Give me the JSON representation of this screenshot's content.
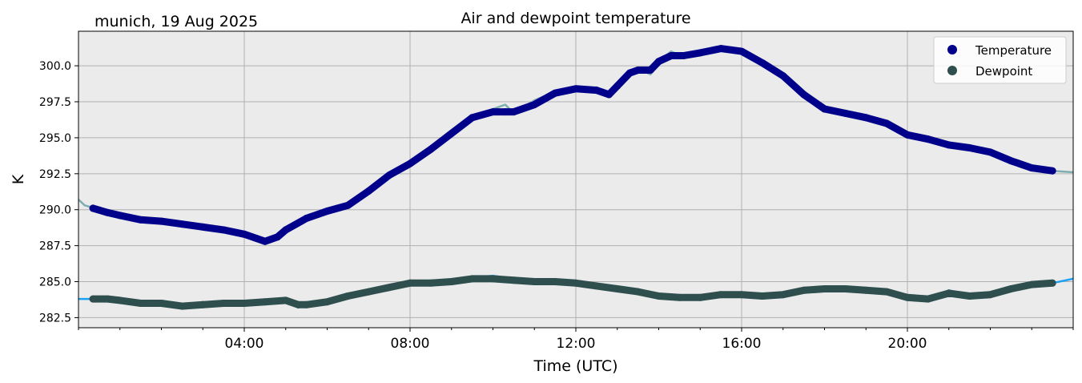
{
  "chart_data": {
    "type": "line",
    "title": "Air and dewpoint temperature",
    "subtitle": "munich, 19 Aug 2025",
    "xlabel": "Time (UTC)",
    "ylabel": "K",
    "xlim": [
      0,
      24
    ],
    "ylim": [
      281.8,
      302.4
    ],
    "grid": true,
    "background": "#ebebeb",
    "x_ticks": [
      {
        "value": 4,
        "label": "04:00"
      },
      {
        "value": 8,
        "label": "08:00"
      },
      {
        "value": 12,
        "label": "12:00"
      },
      {
        "value": 16,
        "label": "16:00"
      },
      {
        "value": 20,
        "label": "20:00"
      }
    ],
    "y_ticks": [
      {
        "value": 282.5,
        "label": "282.5"
      },
      {
        "value": 285.0,
        "label": "285.0"
      },
      {
        "value": 287.5,
        "label": "287.5"
      },
      {
        "value": 290.0,
        "label": "290.0"
      },
      {
        "value": 292.5,
        "label": "292.5"
      },
      {
        "value": 295.0,
        "label": "295.0"
      },
      {
        "value": 297.5,
        "label": "297.5"
      },
      {
        "value": 300.0,
        "label": "300.0"
      }
    ],
    "legend": {
      "placement": "top-right",
      "entries": [
        {
          "label": "Temperature",
          "color": "#00008b"
        },
        {
          "label": "Dewpoint",
          "color": "#2f4f4f"
        }
      ]
    },
    "series": [
      {
        "name": "Temperature raw",
        "role": "raw",
        "color": "#7faeb0",
        "x": [
          0,
          0.15,
          0.4,
          1,
          1.5,
          2,
          2.5,
          3,
          3.5,
          4,
          4.3,
          4.5,
          4.8,
          5,
          5.5,
          6,
          6.5,
          7,
          7.5,
          8,
          8.5,
          9,
          9.5,
          10,
          10.3,
          10.5,
          11,
          11.5,
          12,
          12.5,
          12.8,
          13,
          13.3,
          13.5,
          13.8,
          14,
          14.3,
          14.6,
          15,
          15.5,
          16,
          16.5,
          17,
          17.5,
          18,
          18.5,
          19,
          19.5,
          20,
          20.5,
          21,
          21.5,
          22,
          22.5,
          23,
          23.5,
          24
        ],
        "y": [
          290.7,
          290.3,
          290.1,
          289.6,
          289.3,
          289.2,
          289.0,
          288.8,
          288.6,
          288.3,
          288.0,
          287.8,
          288.1,
          288.6,
          289.4,
          289.9,
          290.3,
          291.3,
          292.4,
          293.2,
          294.2,
          295.5,
          296.4,
          297.0,
          297.3,
          296.7,
          297.6,
          298.2,
          298.4,
          298.5,
          297.9,
          298.7,
          299.5,
          299.8,
          299.4,
          300.3,
          301.0,
          300.6,
          300.9,
          301.2,
          301.0,
          300.3,
          299.5,
          298.0,
          297.0,
          296.7,
          296.4,
          296.0,
          295.2,
          294.9,
          294.5,
          294.2,
          294.0,
          293.4,
          292.9,
          292.7,
          292.6
        ]
      },
      {
        "name": "Temperature",
        "role": "smooth",
        "color": "#00008b",
        "x": [
          0.35,
          0.7,
          1,
          1.5,
          2,
          2.5,
          3,
          3.5,
          4,
          4.3,
          4.5,
          4.8,
          5,
          5.5,
          6,
          6.5,
          7,
          7.5,
          8,
          8.5,
          9,
          9.5,
          10,
          10.3,
          10.5,
          11,
          11.5,
          12,
          12.5,
          12.8,
          13,
          13.3,
          13.5,
          13.8,
          14,
          14.3,
          14.6,
          15,
          15.5,
          16,
          16.5,
          17,
          17.5,
          18,
          18.5,
          19,
          19.5,
          20,
          20.5,
          21,
          21.5,
          22,
          22.5,
          23,
          23.5
        ],
        "y": [
          290.1,
          289.8,
          289.6,
          289.3,
          289.2,
          289.0,
          288.8,
          288.6,
          288.3,
          288.0,
          287.8,
          288.1,
          288.6,
          289.4,
          289.9,
          290.3,
          291.3,
          292.4,
          293.2,
          294.2,
          295.3,
          296.4,
          296.8,
          296.8,
          296.8,
          297.3,
          298.1,
          298.4,
          298.3,
          298.0,
          298.6,
          299.5,
          299.7,
          299.7,
          300.3,
          300.7,
          300.7,
          300.9,
          301.2,
          301.0,
          300.2,
          299.3,
          298.0,
          297.0,
          296.7,
          296.4,
          296.0,
          295.2,
          294.9,
          294.5,
          294.3,
          294.0,
          293.4,
          292.9,
          292.7
        ]
      },
      {
        "name": "Dewpoint raw",
        "role": "raw",
        "color": "#1da1f2",
        "x": [
          0,
          0.5,
          1,
          1.5,
          2,
          2.5,
          3,
          3.5,
          4,
          4.5,
          5,
          5.3,
          5.5,
          6,
          6.5,
          7,
          7.5,
          8,
          8.5,
          9,
          9.5,
          10,
          10.5,
          11,
          11.5,
          12,
          12.5,
          13,
          13.5,
          14,
          14.5,
          15,
          15.5,
          16,
          16.5,
          17,
          17.5,
          18,
          18.5,
          19,
          19.5,
          20,
          20.5,
          21,
          21.5,
          22,
          22.5,
          23,
          23.5,
          24
        ],
        "y": [
          283.8,
          283.8,
          283.6,
          283.4,
          283.5,
          283.3,
          283.4,
          283.5,
          283.5,
          283.6,
          283.8,
          283.2,
          283.4,
          283.6,
          284.0,
          284.3,
          284.6,
          285.0,
          284.9,
          285.1,
          285.3,
          285.4,
          285.2,
          285.1,
          285.0,
          284.9,
          284.7,
          284.5,
          284.3,
          284.0,
          283.8,
          283.9,
          284.2,
          284.2,
          284.0,
          284.2,
          284.5,
          284.6,
          284.5,
          284.5,
          284.3,
          283.8,
          283.8,
          284.4,
          284.0,
          284.1,
          284.5,
          284.8,
          284.9,
          285.2
        ]
      },
      {
        "name": "Dewpoint",
        "role": "smooth",
        "color": "#2f4f4f",
        "x": [
          0.35,
          0.7,
          1,
          1.5,
          2,
          2.5,
          3,
          3.5,
          4,
          4.5,
          5,
          5.3,
          5.5,
          6,
          6.5,
          7,
          7.5,
          8,
          8.5,
          9,
          9.5,
          10,
          10.5,
          11,
          11.5,
          12,
          12.5,
          13,
          13.5,
          14,
          14.5,
          15,
          15.5,
          16,
          16.5,
          17,
          17.5,
          18,
          18.5,
          19,
          19.5,
          20,
          20.5,
          21,
          21.5,
          22,
          22.5,
          23,
          23.5
        ],
        "y": [
          283.8,
          283.8,
          283.7,
          283.5,
          283.5,
          283.3,
          283.4,
          283.5,
          283.5,
          283.6,
          283.7,
          283.4,
          283.4,
          283.6,
          284.0,
          284.3,
          284.6,
          284.9,
          284.9,
          285.0,
          285.2,
          285.2,
          285.1,
          285.0,
          285.0,
          284.9,
          284.7,
          284.5,
          284.3,
          284.0,
          283.9,
          283.9,
          284.1,
          284.1,
          284.0,
          284.1,
          284.4,
          284.5,
          284.5,
          284.4,
          284.3,
          283.9,
          283.8,
          284.2,
          284.0,
          284.1,
          284.5,
          284.8,
          284.9
        ]
      }
    ]
  }
}
